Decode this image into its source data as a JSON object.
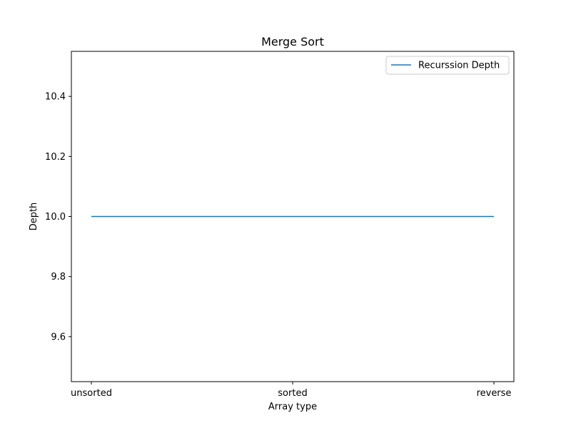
{
  "chart_data": {
    "type": "line",
    "title": "Merge Sort",
    "xlabel": "Array type",
    "ylabel": "Depth",
    "categories": [
      "unsorted",
      "sorted",
      "reverse"
    ],
    "series": [
      {
        "name": "Recurssion Depth",
        "values": [
          10.0,
          10.0,
          10.0
        ],
        "color": "#1f77b4"
      }
    ],
    "ylim": [
      9.45,
      10.55
    ],
    "yticks": [
      9.6,
      9.8,
      10.0,
      10.2,
      10.4
    ],
    "ytick_labels": [
      "9.6",
      "9.8",
      "10.0",
      "10.2",
      "10.4"
    ],
    "grid": false,
    "legend_position": "upper right"
  }
}
